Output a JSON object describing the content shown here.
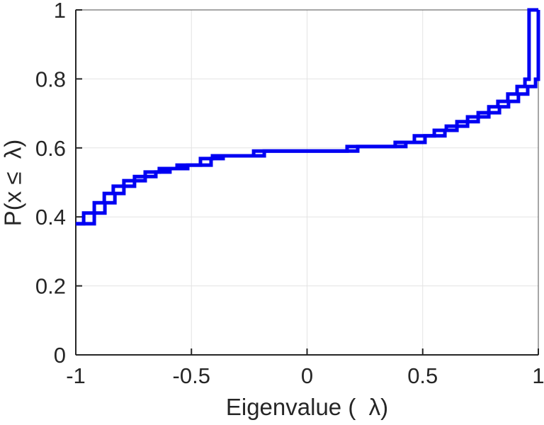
{
  "figure": {
    "background": "#ffffff"
  },
  "chart_data": {
    "type": "line",
    "subtype": "empirical-cdf-stairs",
    "title": "",
    "xlabel": "Eigenvalue (  λ)",
    "ylabel": "P(x ≤  λ)",
    "xlim": [
      -1,
      1
    ],
    "ylim": [
      0,
      1
    ],
    "grid": true,
    "legend": "none",
    "line_color": "#0000f2",
    "axis_color": "#262626",
    "grid_color": "#e3e3e3",
    "box_color": "#4d4d4d",
    "x_ticks": [
      {
        "v": -1,
        "label": "-1"
      },
      {
        "v": -0.5,
        "label": "-0.5"
      },
      {
        "v": 0,
        "label": "0"
      },
      {
        "v": 0.5,
        "label": "0.5"
      },
      {
        "v": 1,
        "label": "1"
      }
    ],
    "y_ticks": [
      {
        "v": 0,
        "label": "0"
      },
      {
        "v": 0.2,
        "label": "0.2"
      },
      {
        "v": 0.4,
        "label": "0.4"
      },
      {
        "v": 0.6,
        "label": "0.6"
      },
      {
        "v": 0.8,
        "label": "0.8"
      },
      {
        "v": 1,
        "label": "1"
      }
    ],
    "start_level": 0.38,
    "double_line_offset_x": 0.046,
    "steps": [
      [
        -0.966,
        0.411
      ],
      [
        -0.92,
        0.441
      ],
      [
        -0.877,
        0.468
      ],
      [
        -0.838,
        0.489
      ],
      [
        -0.792,
        0.505
      ],
      [
        -0.746,
        0.517
      ],
      [
        -0.7,
        0.53
      ],
      [
        -0.639,
        0.54
      ],
      [
        -0.562,
        0.55
      ],
      [
        -0.461,
        0.569
      ],
      [
        -0.409,
        0.577
      ],
      [
        -0.231,
        0.591
      ],
      [
        0.173,
        0.604
      ],
      [
        0.381,
        0.616
      ],
      [
        0.464,
        0.635
      ],
      [
        0.55,
        0.651
      ],
      [
        0.602,
        0.663
      ],
      [
        0.648,
        0.676
      ],
      [
        0.694,
        0.69
      ],
      [
        0.74,
        0.702
      ],
      [
        0.786,
        0.719
      ],
      [
        0.825,
        0.735
      ],
      [
        0.868,
        0.756
      ],
      [
        0.908,
        0.778
      ],
      [
        0.942,
        0.799
      ],
      [
        0.96,
        1.0
      ]
    ]
  }
}
